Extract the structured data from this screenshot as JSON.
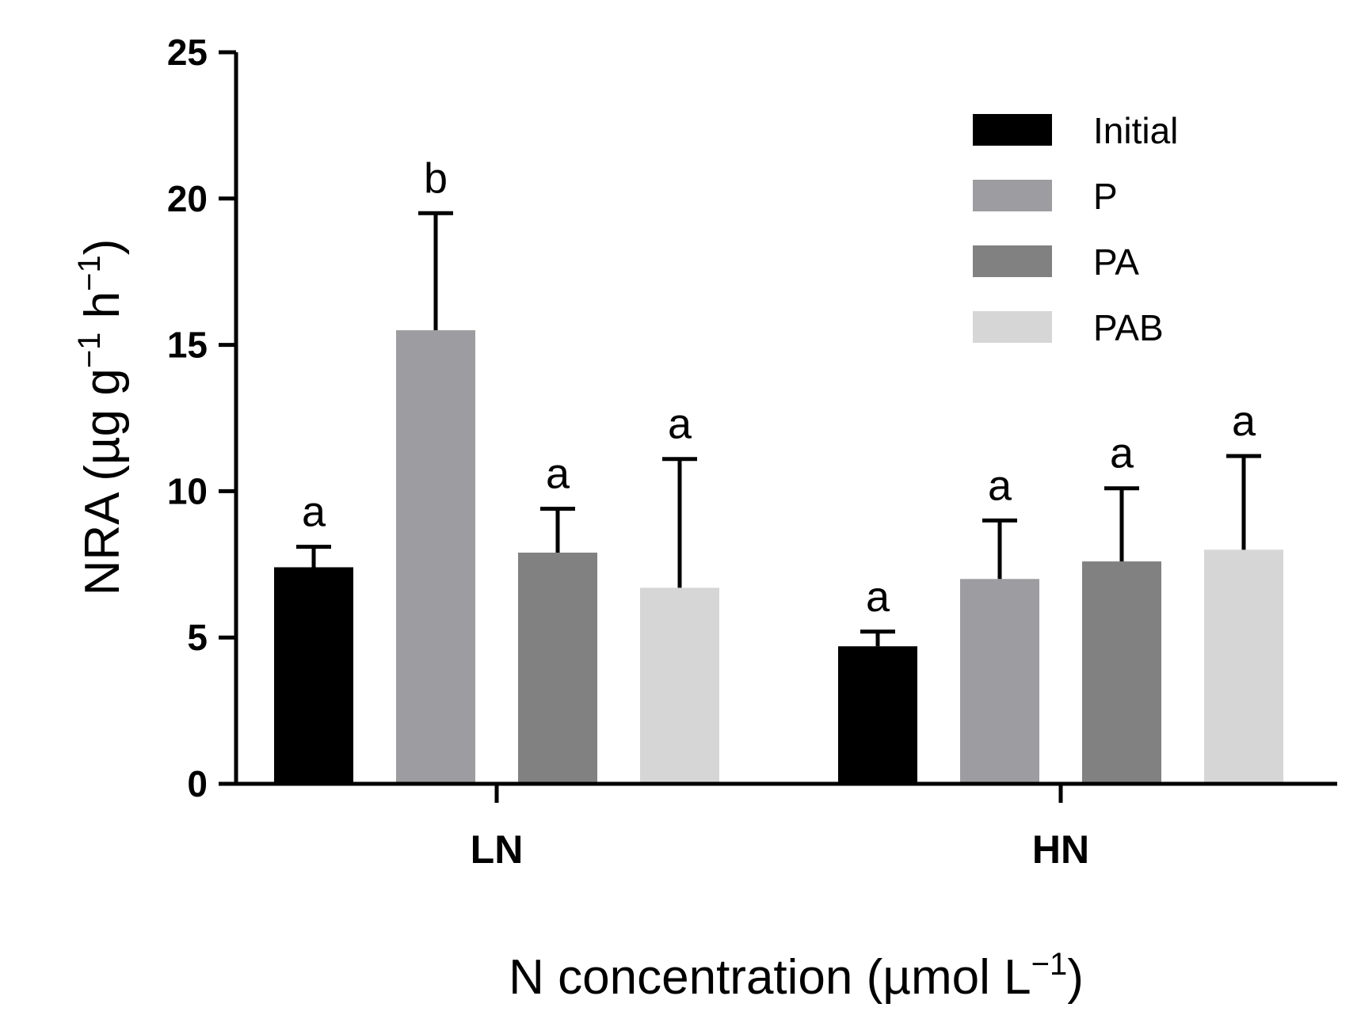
{
  "chart_data": {
    "type": "bar",
    "categories": [
      "LN",
      "HN"
    ],
    "series": [
      {
        "name": "Initial",
        "color": "#000000",
        "values": [
          7.4,
          4.7
        ],
        "errors": [
          0.7,
          0.5
        ],
        "labels": [
          "a",
          "a"
        ]
      },
      {
        "name": "P",
        "color": "#9d9da1",
        "values": [
          15.5,
          7.0
        ],
        "errors": [
          4.0,
          2.0
        ],
        "labels": [
          "b",
          "a"
        ]
      },
      {
        "name": "PA",
        "color": "#818181",
        "values": [
          7.9,
          7.6
        ],
        "errors": [
          1.5,
          2.5
        ],
        "labels": [
          "a",
          "a"
        ]
      },
      {
        "name": "PAB",
        "color": "#d6d6d6",
        "values": [
          6.7,
          8.0
        ],
        "errors": [
          4.4,
          3.2
        ],
        "labels": [
          "a",
          "a"
        ]
      }
    ],
    "ylim": [
      0,
      25
    ],
    "yticks": [
      0,
      5,
      10,
      15,
      20,
      25
    ],
    "ylabel": {
      "main": "NRA (µg g",
      "sup1": "−1",
      "mid": " h",
      "sup2": "−1",
      "end": ")"
    },
    "xlabel": {
      "main": "N concentration (µmol L",
      "sup": "−1",
      "end": ")"
    },
    "legend_position": "top-right"
  }
}
